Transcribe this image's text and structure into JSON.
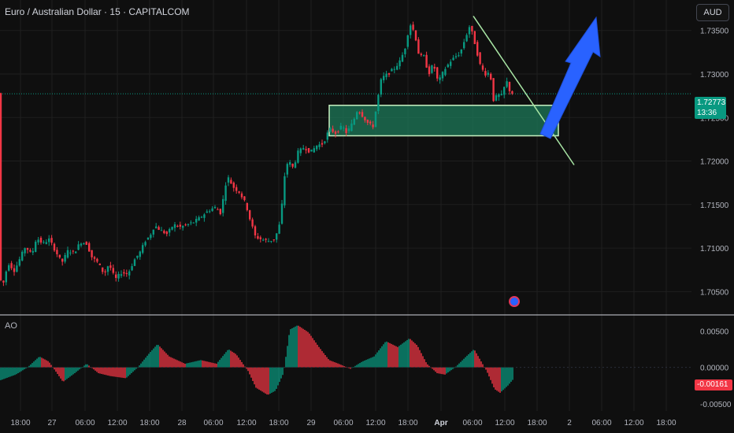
{
  "header": {
    "title": "Euro / Australian Dollar · 15 · CAPITALCOM",
    "currency_button": "AUD"
  },
  "price_tag": {
    "price": "1.72773",
    "countdown": "13:36"
  },
  "ao_panel": {
    "label": "AO",
    "value_tag": "-0.00161"
  },
  "colors": {
    "background": "#0f0f0f",
    "up": "#089981",
    "down": "#f23645",
    "zone_fill": "#1e7a5a",
    "zone_border": "#c7f0c0",
    "trendline": "#a9e6a5",
    "arrow": "#2962ff",
    "grid": "#1f1f1f"
  },
  "chart_data": [
    {
      "type": "candlestick",
      "title": "Euro / Australian Dollar · 15 · CAPITALCOM",
      "y_ticks": [
        "1.73500",
        "1.73000",
        "1.72500",
        "1.72000",
        "1.71500",
        "1.71000",
        "1.70500"
      ],
      "x_ticks": [
        "18:00",
        "27",
        "06:00",
        "12:00",
        "18:00",
        "28",
        "06:00",
        "12:00",
        "18:00",
        "29",
        "06:00",
        "12:00",
        "18:00",
        "Apr",
        "06:00",
        "12:00",
        "18:00",
        "2",
        "06:00",
        "12:00",
        "18:00"
      ],
      "ylim": [
        1.7025,
        1.7385
      ],
      "last_price": 1.72773,
      "price_path": [
        [
          0,
          1.7065
        ],
        [
          6,
          1.706
        ],
        [
          12,
          1.7083
        ],
        [
          20,
          1.7074
        ],
        [
          28,
          1.709
        ],
        [
          34,
          1.7102
        ],
        [
          42,
          1.7092
        ],
        [
          48,
          1.7112
        ],
        [
          56,
          1.7105
        ],
        [
          64,
          1.711
        ],
        [
          72,
          1.7097
        ],
        [
          80,
          1.7083
        ],
        [
          88,
          1.7097
        ],
        [
          96,
          1.7095
        ],
        [
          104,
          1.7107
        ],
        [
          112,
          1.7105
        ],
        [
          118,
          1.709
        ],
        [
          126,
          1.7083
        ],
        [
          134,
          1.707
        ],
        [
          140,
          1.7082
        ],
        [
          148,
          1.7064
        ],
        [
          156,
          1.7072
        ],
        [
          164,
          1.707
        ],
        [
          172,
          1.7086
        ],
        [
          180,
          1.7096
        ],
        [
          186,
          1.7108
        ],
        [
          192,
          1.7114
        ],
        [
          198,
          1.7126
        ],
        [
          206,
          1.712
        ],
        [
          214,
          1.7116
        ],
        [
          222,
          1.7127
        ],
        [
          230,
          1.7124
        ],
        [
          240,
          1.7127
        ],
        [
          248,
          1.713
        ],
        [
          256,
          1.7135
        ],
        [
          262,
          1.714
        ],
        [
          270,
          1.7145
        ],
        [
          276,
          1.7147
        ],
        [
          282,
          1.714
        ],
        [
          290,
          1.7183
        ],
        [
          298,
          1.717
        ],
        [
          306,
          1.7164
        ],
        [
          314,
          1.715
        ],
        [
          320,
          1.713
        ],
        [
          326,
          1.7113
        ],
        [
          334,
          1.711
        ],
        [
          342,
          1.7108
        ],
        [
          350,
          1.711
        ],
        [
          356,
          1.7124
        ],
        [
          360,
          1.7152
        ],
        [
          364,
          1.7192
        ],
        [
          368,
          1.72
        ],
        [
          374,
          1.7192
        ],
        [
          380,
          1.721
        ],
        [
          388,
          1.7216
        ],
        [
          396,
          1.721
        ],
        [
          404,
          1.7218
        ],
        [
          412,
          1.722
        ],
        [
          420,
          1.7237
        ],
        [
          428,
          1.7232
        ],
        [
          436,
          1.724
        ],
        [
          442,
          1.7232
        ],
        [
          450,
          1.7245
        ],
        [
          456,
          1.726
        ],
        [
          462,
          1.7252
        ],
        [
          470,
          1.7242
        ],
        [
          476,
          1.724
        ],
        [
          480,
          1.7265
        ],
        [
          486,
          1.7295
        ],
        [
          494,
          1.73
        ],
        [
          502,
          1.7306
        ],
        [
          510,
          1.7315
        ],
        [
          516,
          1.733
        ],
        [
          522,
          1.7358
        ],
        [
          528,
          1.7348
        ],
        [
          534,
          1.732
        ],
        [
          540,
          1.732
        ],
        [
          546,
          1.73
        ],
        [
          552,
          1.7312
        ],
        [
          558,
          1.729
        ],
        [
          566,
          1.7305
        ],
        [
          574,
          1.7315
        ],
        [
          580,
          1.732
        ],
        [
          586,
          1.7324
        ],
        [
          592,
          1.734
        ],
        [
          598,
          1.7355
        ],
        [
          602,
          1.7345
        ],
        [
          606,
          1.733
        ],
        [
          612,
          1.7308
        ],
        [
          618,
          1.73
        ],
        [
          624,
          1.7302
        ],
        [
          628,
          1.727
        ],
        [
          634,
          1.7276
        ],
        [
          640,
          1.7275
        ],
        [
          644,
          1.7295
        ],
        [
          648,
          1.7282
        ],
        [
          652,
          1.7278
        ]
      ],
      "ao_ylim": [
        -0.006,
        0.007
      ],
      "ao_ticks": [
        "0.00500",
        "0.00000",
        "-0.00500"
      ],
      "ao_path": [
        [
          0,
          -0.0018
        ],
        [
          20,
          -0.001
        ],
        [
          35,
          0.0
        ],
        [
          50,
          0.0015
        ],
        [
          62,
          0.0008
        ],
        [
          80,
          -0.002
        ],
        [
          95,
          -0.0008
        ],
        [
          110,
          0.0005
        ],
        [
          125,
          -0.0008
        ],
        [
          140,
          -0.0012
        ],
        [
          160,
          -0.0015
        ],
        [
          175,
          0.0
        ],
        [
          190,
          0.002
        ],
        [
          200,
          0.0032
        ],
        [
          215,
          0.0015
        ],
        [
          235,
          0.0005
        ],
        [
          255,
          0.001
        ],
        [
          275,
          0.0005
        ],
        [
          290,
          0.0025
        ],
        [
          300,
          0.0018
        ],
        [
          315,
          -0.0005
        ],
        [
          325,
          -0.0028
        ],
        [
          340,
          -0.0038
        ],
        [
          350,
          -0.0032
        ],
        [
          360,
          -0.0008
        ],
        [
          368,
          0.0052
        ],
        [
          378,
          0.0058
        ],
        [
          392,
          0.0048
        ],
        [
          405,
          0.0028
        ],
        [
          418,
          0.001
        ],
        [
          430,
          0.0005
        ],
        [
          445,
          -0.0002
        ],
        [
          460,
          0.0008
        ],
        [
          475,
          0.0015
        ],
        [
          490,
          0.0036
        ],
        [
          505,
          0.0028
        ],
        [
          520,
          0.004
        ],
        [
          530,
          0.003
        ],
        [
          542,
          0.0005
        ],
        [
          555,
          -0.0008
        ],
        [
          565,
          -0.001
        ],
        [
          578,
          0.0
        ],
        [
          592,
          0.0015
        ],
        [
          602,
          0.0025
        ],
        [
          610,
          0.001
        ],
        [
          618,
          -0.0005
        ],
        [
          628,
          -0.003
        ],
        [
          635,
          -0.0035
        ],
        [
          645,
          -0.0025
        ],
        [
          652,
          -0.0016
        ]
      ]
    }
  ]
}
